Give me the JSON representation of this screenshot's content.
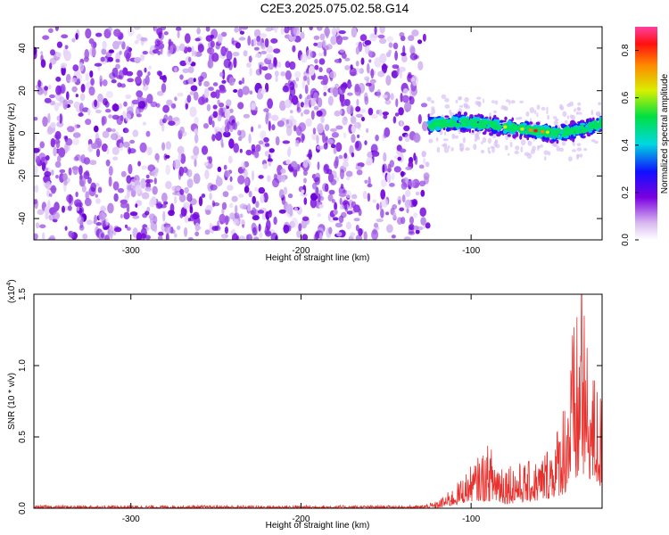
{
  "title": "C2E3.2025.075.02.58.G14",
  "chart_data": [
    {
      "type": "heatmap",
      "name": "spectrogram",
      "xlabel": "Height of straight line (km)",
      "ylabel": "Frequency (Hz)",
      "xlim": [
        -357,
        -23
      ],
      "ylim": [
        -50,
        50
      ],
      "xticks": [
        -300,
        -200,
        -100
      ],
      "xtick_labels": [
        "-300",
        "-200",
        "-100"
      ],
      "yticks": [
        -40,
        -20,
        0,
        20,
        40
      ],
      "ytick_labels": [
        "-40",
        "-20",
        "0",
        "20",
        "40"
      ],
      "noise_region": {
        "x": [
          -357,
          -125
        ],
        "y": [
          -50,
          50
        ],
        "dominant_color": "#8a2be2"
      },
      "signal_track": {
        "x": [
          -125,
          -110,
          -100,
          -90,
          -80,
          -70,
          -60,
          -50,
          -40,
          -30,
          -23
        ],
        "y": [
          4,
          5,
          5,
          4,
          3,
          2,
          1,
          0,
          1,
          3,
          5
        ]
      },
      "colorbar": {
        "label": "Normalized spectral amplitude",
        "range": [
          0.0,
          0.9
        ],
        "ticks": [
          0.0,
          0.2,
          0.4,
          0.6,
          0.8
        ],
        "tick_labels": [
          "0.0",
          "0.2",
          "0.4",
          "0.6",
          "0.8"
        ]
      },
      "grid": false
    },
    {
      "type": "line",
      "name": "snr",
      "xlabel": "Height of straight line (km)",
      "ylabel": "SNR (10 * v/v)",
      "scale_label": "(x10",
      "scale_exp": "4",
      "scale_close": ")",
      "xlim": [
        -357,
        -23
      ],
      "ylim": [
        0,
        1.5
      ],
      "xticks": [
        -300,
        -200,
        -100
      ],
      "xtick_labels": [
        "-300",
        "-200",
        "-100"
      ],
      "yticks": [
        0.0,
        0.5,
        1.0,
        1.5
      ],
      "ytick_labels": [
        "0.0",
        "0.5",
        "1.0",
        "1.5"
      ],
      "line_color": "#e8302c",
      "envelope": {
        "x": [
          -357,
          -130,
          -120,
          -110,
          -100,
          -90,
          -80,
          -70,
          -60,
          -50,
          -45,
          -40,
          -35,
          -30,
          -25,
          -23
        ],
        "upper": [
          0.02,
          0.02,
          0.05,
          0.15,
          0.3,
          0.45,
          0.35,
          0.32,
          0.35,
          0.55,
          0.85,
          1.3,
          1.5,
          1.0,
          0.9,
          0.8
        ],
        "lower": [
          0.0,
          0.0,
          0.0,
          0.02,
          0.05,
          0.05,
          0.03,
          0.04,
          0.05,
          0.08,
          0.1,
          0.15,
          0.2,
          0.2,
          0.15,
          0.1
        ]
      },
      "peak": {
        "x": -35,
        "y": 1.5
      },
      "grid": false
    }
  ]
}
